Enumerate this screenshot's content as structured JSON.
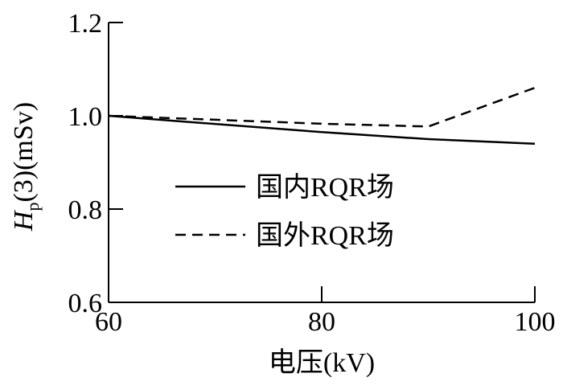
{
  "chart_data": {
    "type": "line",
    "xlabel": "电压(kV)",
    "ylabel": {
      "main": "H",
      "subscript": "p",
      "suffix": "(3)(mSv)"
    },
    "xlim": [
      60,
      100
    ],
    "ylim": [
      0.6,
      1.2
    ],
    "xticks": [
      60,
      80,
      100
    ],
    "xtick_labels": [
      "60",
      "80",
      "100"
    ],
    "yticks": [
      0.6,
      0.8,
      1.0,
      1.2
    ],
    "ytick_labels": [
      "0.6",
      "0.8",
      "1.0",
      "1.2"
    ],
    "grid": false,
    "legend_position": "center-left",
    "series": [
      {
        "name": "国内RQR场",
        "style": "solid",
        "color": "#000000",
        "x": [
          60,
          80,
          90,
          100
        ],
        "y": [
          1.0,
          0.965,
          0.95,
          0.94
        ]
      },
      {
        "name": "国外RQR场",
        "style": "dashed",
        "color": "#000000",
        "x": [
          60,
          80,
          90,
          100
        ],
        "y": [
          1.0,
          0.983,
          0.977,
          1.06
        ]
      }
    ]
  }
}
